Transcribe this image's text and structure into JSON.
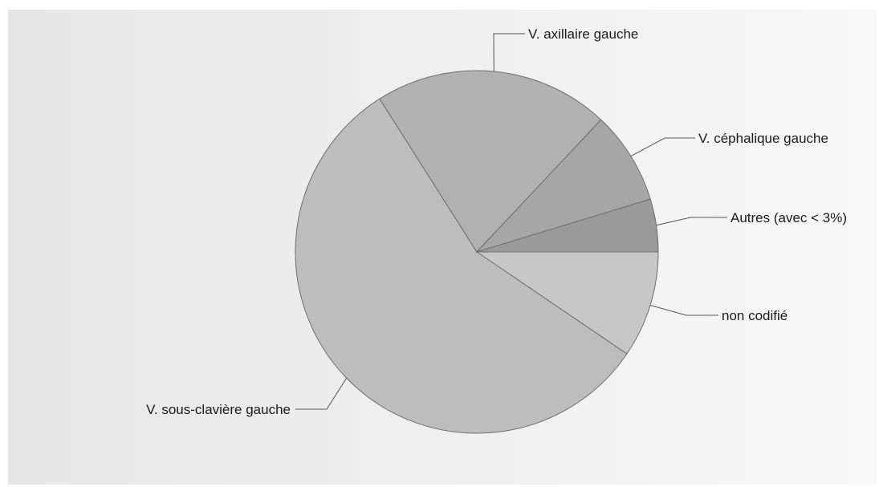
{
  "chart_data": {
    "type": "pie",
    "title": "",
    "start_angle_deg": 0,
    "direction": "clockwise",
    "slices": [
      {
        "label": "non codifié",
        "value": 9.5,
        "color": "#c7c7c7"
      },
      {
        "label": "V. sous-clavière gauche",
        "value": 56.5,
        "color": "#bdbdbd"
      },
      {
        "label": "V. axillaire gauche",
        "value": 21.0,
        "color": "#b1b1b1"
      },
      {
        "label": "V. céphalique gauche",
        "value": 8.3,
        "color": "#a6a6a6"
      },
      {
        "label": "Autres (avec < 3%)",
        "value": 4.7,
        "color": "#9a9a9a"
      }
    ],
    "background": {
      "gradient_from": "#e6e6e6",
      "gradient_to": "#f8f8f8"
    }
  }
}
